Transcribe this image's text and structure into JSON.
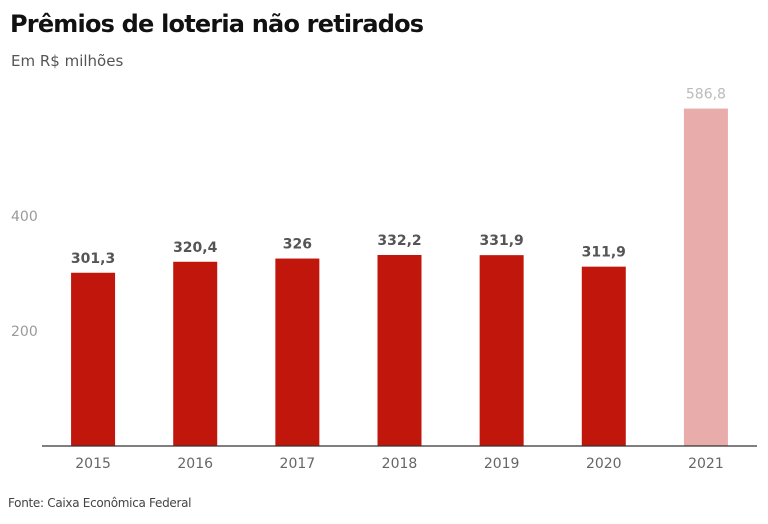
{
  "header": {
    "title": "Prêmios de loteria não retirados",
    "subtitle": "Em R$ milhões"
  },
  "footer": {
    "source": "Fonte: Caixa Econômica Federal"
  },
  "colors": {
    "bar": "#c0160c",
    "bar_highlight": "#e8adaa",
    "axis": "#333333"
  },
  "chart_data": {
    "type": "bar",
    "title": "Prêmios de loteria não retirados",
    "subtitle": "Em R$ milhões",
    "xlabel": "",
    "ylabel": "",
    "categories": [
      "2015",
      "2016",
      "2017",
      "2018",
      "2019",
      "2020",
      "2021"
    ],
    "values": [
      301.3,
      320.4,
      326,
      332.2,
      331.9,
      311.9,
      586.8
    ],
    "data_labels": [
      "301,3",
      "320,4",
      "326",
      "332,2",
      "331,9",
      "311,9",
      "586,8"
    ],
    "highlighted": [
      false,
      false,
      false,
      false,
      false,
      false,
      true
    ],
    "yticks": [
      200,
      400
    ],
    "ytick_labels": [
      "200",
      "400"
    ],
    "ylim": [
      0,
      600
    ],
    "grid": false,
    "legend": "none",
    "source": "Fonte: Caixa Econômica Federal"
  }
}
